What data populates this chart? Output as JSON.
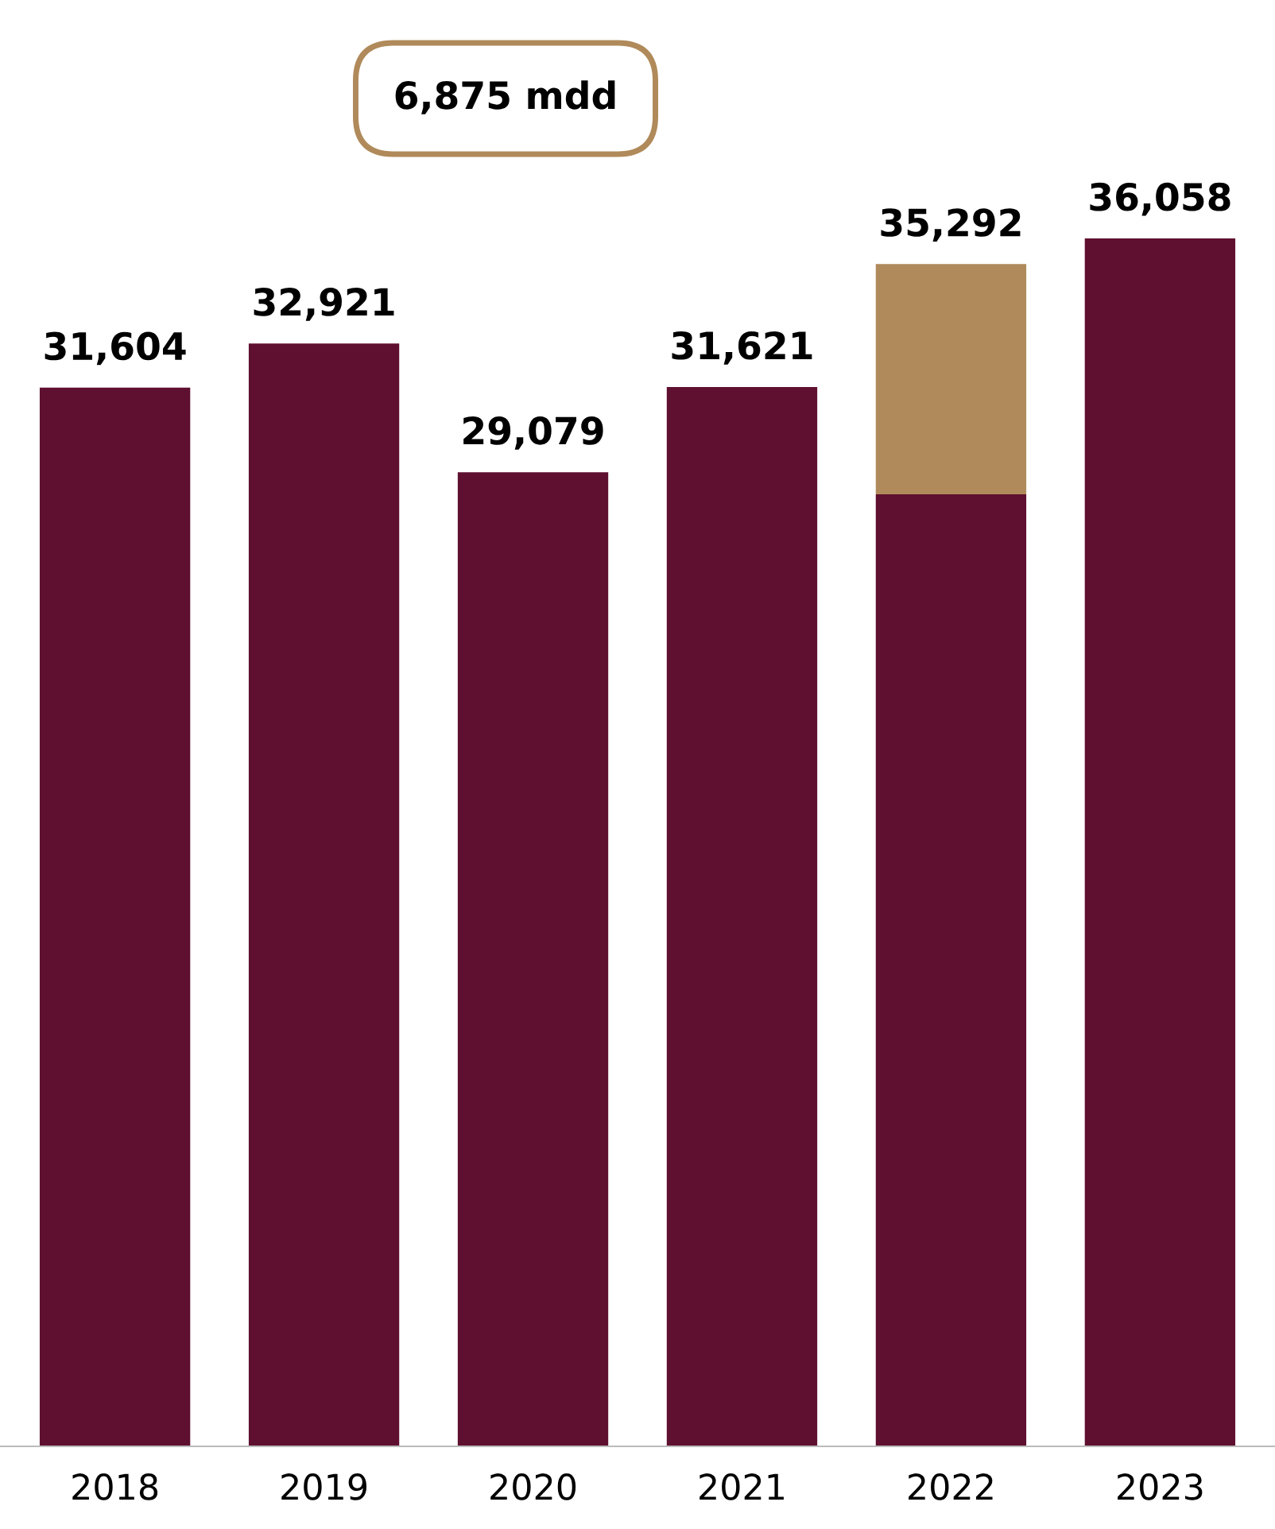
{
  "chart_data": {
    "type": "bar",
    "stacked": true,
    "categories": [
      "2018",
      "2019",
      "2020",
      "2021",
      "2022",
      "2023"
    ],
    "series": [
      {
        "color": "#5f1030",
        "values": [
          31604,
          32921,
          29079,
          31621,
          28417,
          36058
        ],
        "value_labels": [
          "31,604",
          "32,921",
          "29,079",
          "31,621",
          null,
          "36,058"
        ]
      },
      {
        "color": "#b08a5a",
        "values": [
          null,
          null,
          null,
          null,
          6875,
          null
        ]
      }
    ],
    "totals": [
      null,
      null,
      null,
      null,
      "35,292",
      null
    ],
    "annotations": [
      "6,875 mdd"
    ],
    "grid": false,
    "legend": false,
    "tick_labels": "x"
  }
}
